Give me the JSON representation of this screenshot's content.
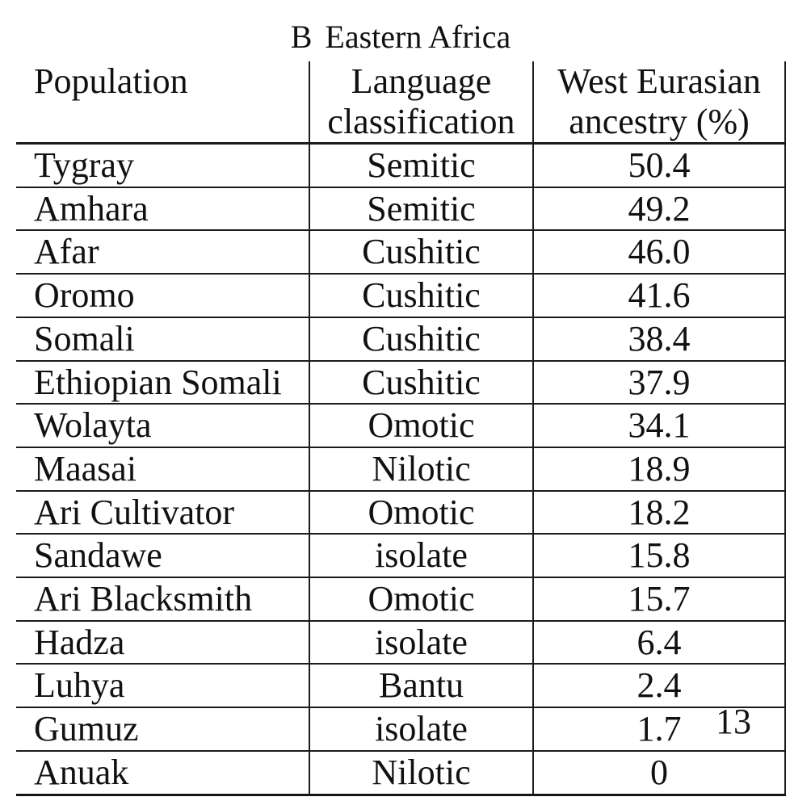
{
  "caption": {
    "panel_label": "B",
    "title": "Eastern Africa"
  },
  "page_number": "13",
  "table": {
    "columns": [
      {
        "line1": "Population",
        "line2": ""
      },
      {
        "line1": "Language",
        "line2": "classification"
      },
      {
        "line1": "West Eurasian",
        "line2": "ancestry (%)"
      }
    ],
    "rows": [
      {
        "population": "Tygray",
        "language": "Semitic",
        "ancestry": "50.4"
      },
      {
        "population": "Amhara",
        "language": "Semitic",
        "ancestry": "49.2"
      },
      {
        "population": "Afar",
        "language": "Cushitic",
        "ancestry": "46.0"
      },
      {
        "population": "Oromo",
        "language": "Cushitic",
        "ancestry": "41.6"
      },
      {
        "population": "Somali",
        "language": "Cushitic",
        "ancestry": "38.4"
      },
      {
        "population": "Ethiopian Somali",
        "language": "Cushitic",
        "ancestry": "37.9"
      },
      {
        "population": "Wolayta",
        "language": "Omotic",
        "ancestry": "34.1"
      },
      {
        "population": "Maasai",
        "language": "Nilotic",
        "ancestry": "18.9"
      },
      {
        "population": "Ari Cultivator",
        "language": "Omotic",
        "ancestry": "18.2"
      },
      {
        "population": "Sandawe",
        "language": "isolate",
        "ancestry": "15.8"
      },
      {
        "population": "Ari Blacksmith",
        "language": "Omotic",
        "ancestry": "15.7"
      },
      {
        "population": "Hadza",
        "language": "isolate",
        "ancestry": "6.4"
      },
      {
        "population": "Luhya",
        "language": "Bantu",
        "ancestry": "2.4"
      },
      {
        "population": "Gumuz",
        "language": "isolate",
        "ancestry": "1.7"
      },
      {
        "population": "Anuak",
        "language": "Nilotic",
        "ancestry": "0"
      }
    ]
  },
  "colors": {
    "background": "#ffffff",
    "text": "#111111",
    "rule": "#1b1b1b"
  }
}
